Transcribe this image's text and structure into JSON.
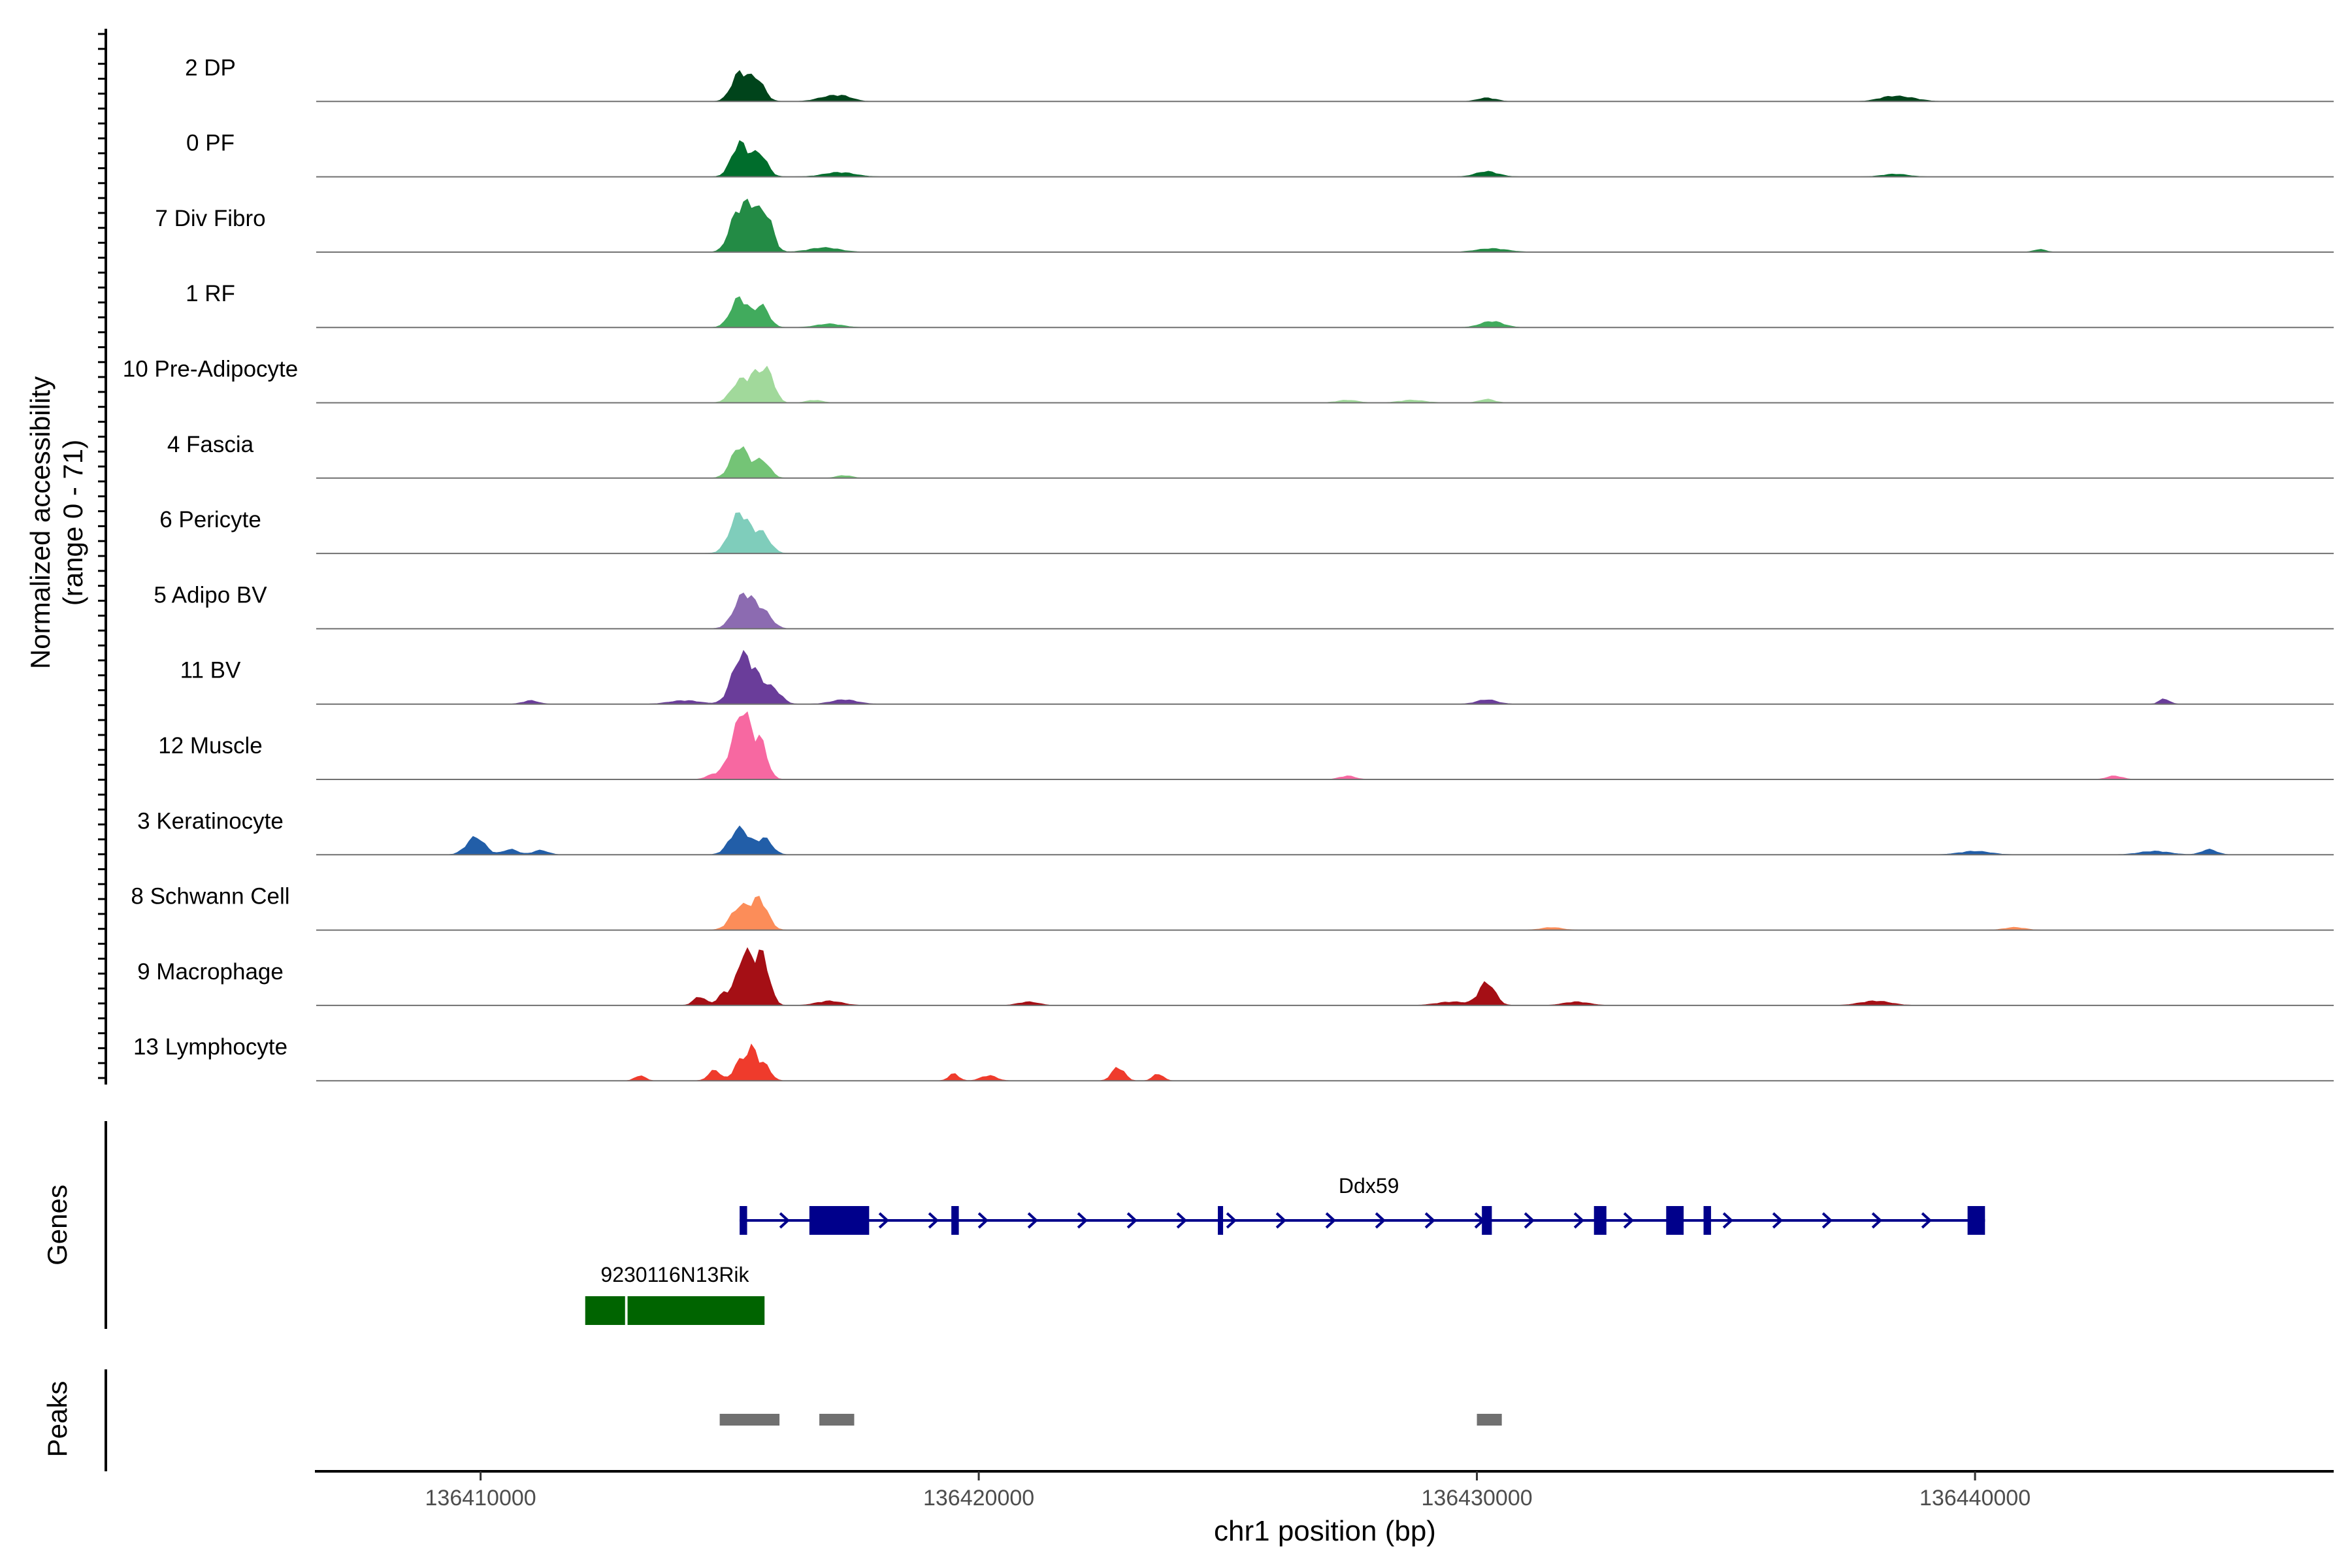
{
  "chart_data": {
    "type": "coverage_track",
    "region": {
      "chrom": "chr1",
      "start": 136406700,
      "end": 136447200
    },
    "xlabel": "chr1 position (bp)",
    "x_ticks": [
      136410000,
      136420000,
      136430000,
      136440000
    ],
    "x_tick_labels": [
      "136410000",
      "136420000",
      "136430000",
      "136440000"
    ],
    "coverage": {
      "ylabel_line1": "Normalized accessibility",
      "ylabel_line2": "(range 0 - 71)",
      "ylim": [
        0,
        71
      ],
      "tracks": [
        {
          "name": "2 DP",
          "color": "#00441b",
          "peaks": [
            [
              136415200,
              32,
              160
            ],
            [
              136415550,
              24,
              150
            ],
            [
              136417000,
              5,
              250
            ],
            [
              136417300,
              4,
              200
            ],
            [
              136430200,
              4,
              180
            ],
            [
              136438300,
              5,
              250
            ],
            [
              136438700,
              3,
              250
            ]
          ]
        },
        {
          "name": "0 PF",
          "color": "#006d2c",
          "peaks": [
            [
              136415200,
              38,
              160
            ],
            [
              136415600,
              26,
              150
            ],
            [
              136417200,
              5,
              300
            ],
            [
              136430200,
              6,
              220
            ],
            [
              136438400,
              3,
              250
            ]
          ]
        },
        {
          "name": "7 Div Fibro",
          "color": "#238b45",
          "peaks": [
            [
              136415150,
              42,
              160
            ],
            [
              136415450,
              46,
              150
            ],
            [
              136415750,
              38,
              130
            ],
            [
              136416900,
              5,
              300
            ],
            [
              136430300,
              4,
              300
            ],
            [
              136441300,
              3,
              120
            ]
          ]
        },
        {
          "name": "1 RF",
          "color": "#41ab5d",
          "peaks": [
            [
              136415200,
              34,
              170
            ],
            [
              136415650,
              24,
              140
            ],
            [
              136417000,
              4,
              250
            ],
            [
              136430300,
              7,
              220
            ]
          ]
        },
        {
          "name": "10 Pre-Adipocyte",
          "color": "#a1d99b",
          "peaks": [
            [
              136415200,
              24,
              170
            ],
            [
              136415550,
              30,
              150
            ],
            [
              136415800,
              28,
              120
            ],
            [
              136416700,
              3,
              150
            ],
            [
              136427400,
              3,
              200
            ],
            [
              136428700,
              3,
              250
            ],
            [
              136430200,
              4,
              150
            ]
          ]
        },
        {
          "name": "4 Fascia",
          "color": "#74c476",
          "peaks": [
            [
              136415200,
              36,
              170
            ],
            [
              136415650,
              20,
              150
            ],
            [
              136417300,
              3,
              150
            ]
          ]
        },
        {
          "name": "6 Pericyte",
          "color": "#7fcdbb",
          "peaks": [
            [
              136415200,
              46,
              190
            ],
            [
              136415650,
              22,
              160
            ]
          ]
        },
        {
          "name": "5 Adipo BV",
          "color": "#8c6bb1",
          "peaks": [
            [
              136415300,
              40,
              200
            ],
            [
              136415700,
              16,
              160
            ]
          ]
        },
        {
          "name": "11 BV",
          "color": "#6a3d9a",
          "peaks": [
            [
              136415200,
              44,
              180
            ],
            [
              136415500,
              30,
              200
            ],
            [
              136415900,
              14,
              150
            ],
            [
              136411000,
              4,
              150
            ],
            [
              136414100,
              4,
              300
            ],
            [
              136417300,
              5,
              250
            ],
            [
              136430200,
              5,
              200
            ],
            [
              136443800,
              6,
              100
            ]
          ]
        },
        {
          "name": "12 Muscle",
          "color": "#f768a1",
          "peaks": [
            [
              136415100,
              40,
              150
            ],
            [
              136415300,
              58,
              120
            ],
            [
              136415600,
              46,
              140
            ],
            [
              136414700,
              6,
              150
            ],
            [
              136427400,
              4,
              150
            ],
            [
              136442800,
              4,
              150
            ]
          ]
        },
        {
          "name": "3 Keratinocyte",
          "color": "#225ea8",
          "peaks": [
            [
              136415200,
              30,
              190
            ],
            [
              136415700,
              18,
              150
            ],
            [
              136409900,
              20,
              180
            ],
            [
              136410600,
              6,
              150
            ],
            [
              136411200,
              5,
              150
            ],
            [
              136440000,
              4,
              300
            ],
            [
              136443600,
              4,
              300
            ],
            [
              136444700,
              6,
              150
            ]
          ]
        },
        {
          "name": "8 Schwann Cell",
          "color": "#fc8d59",
          "peaks": [
            [
              136415200,
              26,
              180
            ],
            [
              136415600,
              34,
              160
            ],
            [
              136431500,
              3,
              200
            ],
            [
              136440800,
              3,
              200
            ]
          ]
        },
        {
          "name": "9 Macrophage",
          "color": "#a50f15",
          "peaks": [
            [
              136415300,
              58,
              150
            ],
            [
              136415650,
              56,
              140
            ],
            [
              136414900,
              14,
              130
            ],
            [
              136414400,
              10,
              120
            ],
            [
              136430200,
              26,
              160
            ],
            [
              136417000,
              5,
              250
            ],
            [
              136429500,
              4,
              300
            ],
            [
              136432000,
              4,
              250
            ],
            [
              136438000,
              5,
              300
            ],
            [
              136421000,
              4,
              200
            ]
          ]
        },
        {
          "name": "13 Lymphocyte",
          "color": "#ef3b2c",
          "peaks": [
            [
              136415200,
              22,
              120
            ],
            [
              136415450,
              34,
              100
            ],
            [
              136415700,
              18,
              120
            ],
            [
              136414700,
              12,
              120
            ],
            [
              136413200,
              6,
              100
            ],
            [
              136419500,
              8,
              100
            ],
            [
              136420200,
              6,
              150
            ],
            [
              136422800,
              16,
              120
            ],
            [
              136423600,
              8,
              100
            ]
          ]
        }
      ]
    },
    "genes": {
      "label": "Genes",
      "items": [
        {
          "name": "Ddx59",
          "strand": "+",
          "color": "#00008b",
          "start": 136415200,
          "end": 136440200,
          "exons": [
            [
              136415200,
              136415350
            ],
            [
              136416600,
              136417800
            ],
            [
              136419450,
              136419600
            ],
            [
              136424800,
              136424900
            ],
            [
              136430100,
              136430300
            ],
            [
              136432350,
              136432600
            ],
            [
              136433800,
              136434150
            ],
            [
              136434550,
              136434700
            ],
            [
              136439850,
              136440200
            ]
          ]
        },
        {
          "name": "9230116N13Rik",
          "strand": "",
          "color": "#006400",
          "start": 136412100,
          "end": 136415700,
          "exons": [
            [
              136412100,
              136412900
            ],
            [
              136412950,
              136415700
            ]
          ]
        }
      ]
    },
    "peaks": {
      "label": "Peaks",
      "color": "#707070",
      "regions": [
        [
          136414800,
          136416000
        ],
        [
          136416800,
          136417500
        ],
        [
          136430000,
          136430500
        ]
      ]
    }
  }
}
